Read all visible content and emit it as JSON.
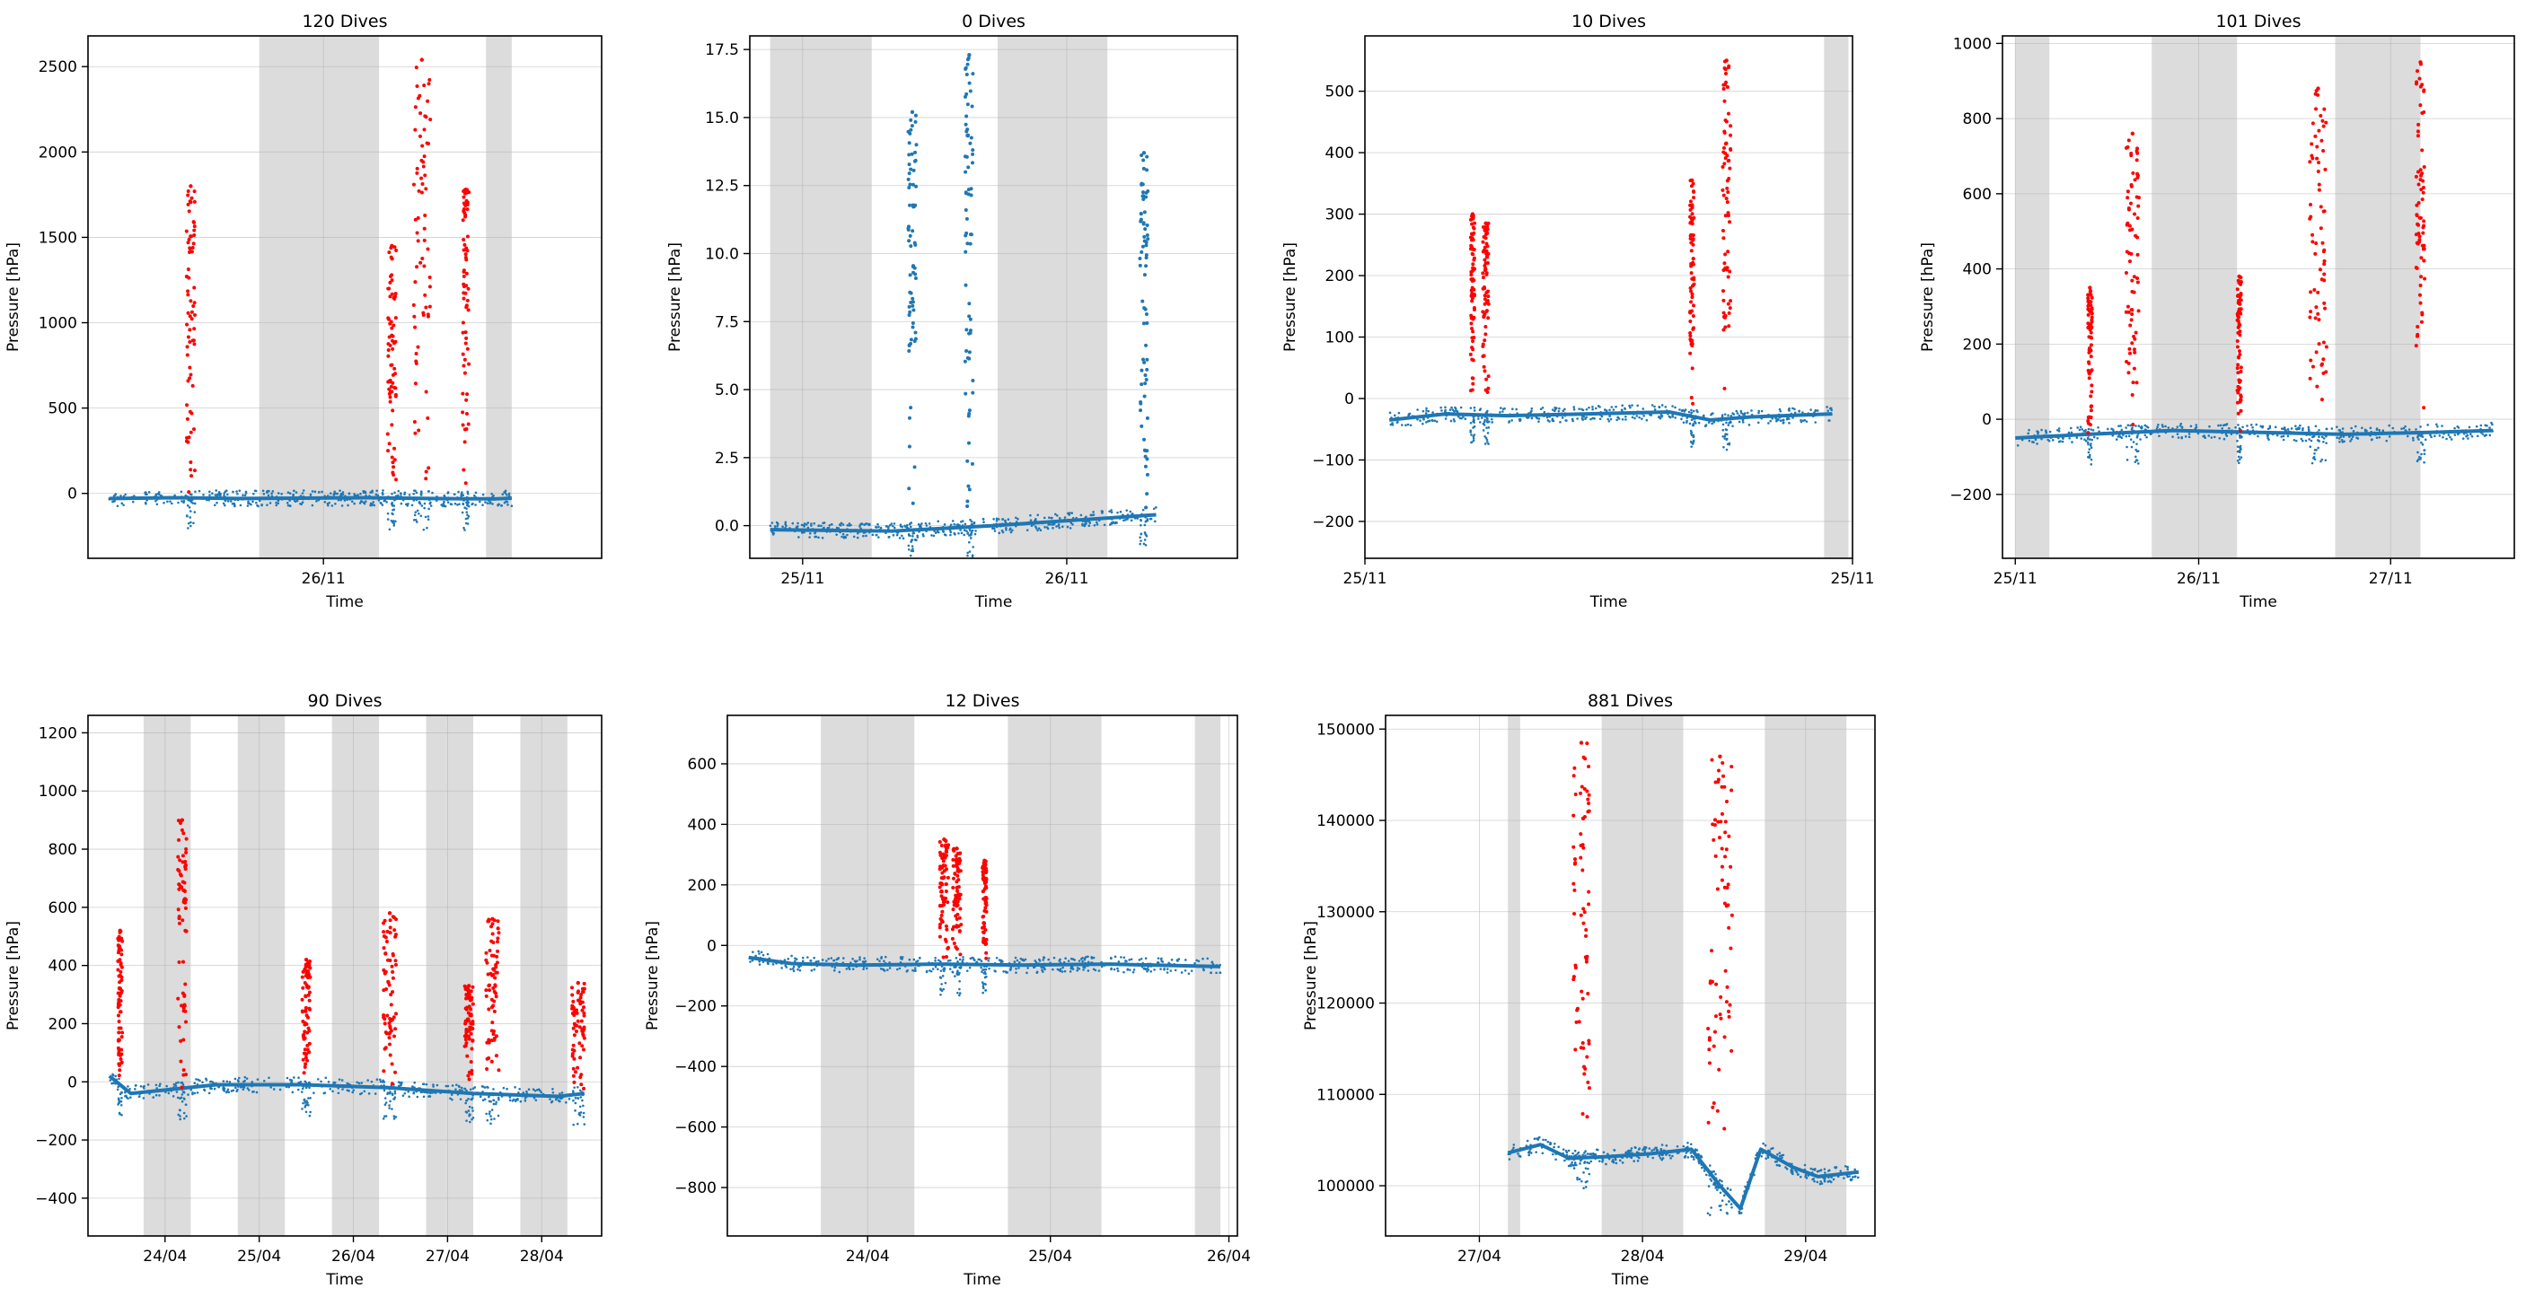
{
  "chart_data": [
    {
      "type": "scatter",
      "title": "120 Dives",
      "xlabel": "Time",
      "ylabel": "Pressure [hPa]",
      "xlim": [
        0,
        1.2
      ],
      "ylim": [
        -380,
        2680
      ],
      "yticks": [
        0,
        500,
        1000,
        1500,
        2000,
        2500
      ],
      "xticks": [
        {
          "x": 0.55,
          "label": "26/11"
        }
      ],
      "grid": true,
      "night_bands": [
        [
          0.4,
          0.68
        ],
        [
          0.93,
          0.99
        ]
      ],
      "baseline": [
        [
          0.05,
          -30
        ],
        [
          0.2,
          -25
        ],
        [
          0.35,
          -30
        ],
        [
          0.5,
          -28
        ],
        [
          0.65,
          -25
        ],
        [
          0.8,
          -30
        ],
        [
          0.95,
          -32
        ],
        [
          0.99,
          -28
        ]
      ],
      "series": [
        {
          "color": "#ff0000",
          "bursts": [
            {
              "x": [
                0.23,
                0.25
              ],
              "peak": 1800
            },
            {
              "x": [
                0.7,
                0.72
              ],
              "peak": 1450
            },
            {
              "x": [
                0.76,
                0.8
              ],
              "peak": 2540
            },
            {
              "x": [
                0.875,
                0.89
              ],
              "peak": 1780
            }
          ]
        }
      ]
    },
    {
      "type": "scatter",
      "title": "0 Dives",
      "xlabel": "Time",
      "ylabel": "Pressure [hPa]",
      "xlim": [
        0,
        1.2
      ],
      "ylim": [
        -1.2,
        18.0
      ],
      "yticks": [
        0.0,
        2.5,
        5.0,
        7.5,
        10.0,
        12.5,
        15.0,
        17.5
      ],
      "ytick_labels": [
        "0.0",
        "2.5",
        "5.0",
        "7.5",
        "10.0",
        "12.5",
        "15.0",
        "17.5"
      ],
      "xticks": [
        {
          "x": 0.13,
          "label": "25/11"
        },
        {
          "x": 0.78,
          "label": "26/11"
        }
      ],
      "grid": true,
      "night_bands": [
        [
          0.05,
          0.3
        ],
        [
          0.61,
          0.88
        ]
      ],
      "baseline": [
        [
          0.05,
          -0.15
        ],
        [
          0.35,
          -0.2
        ],
        [
          0.6,
          0.0
        ],
        [
          0.8,
          0.2
        ],
        [
          1.0,
          0.4
        ]
      ],
      "series": [
        {
          "color": "#1f77b4",
          "bursts": [
            {
              "x": [
                0.39,
                0.41
              ],
              "peak": 15.2
            },
            {
              "x": [
                0.53,
                0.55
              ],
              "peak": 17.3
            },
            {
              "x": [
                0.96,
                0.98
              ],
              "peak": 13.7
            }
          ]
        }
      ]
    },
    {
      "type": "scatter",
      "title": "10 Dives",
      "xlabel": "Time",
      "ylabel": "Pressure [hPa]",
      "xlim": [
        0,
        1.2
      ],
      "ylim": [
        -260,
        590
      ],
      "yticks": [
        -200,
        -100,
        0,
        100,
        200,
        300,
        400,
        500
      ],
      "xticks": [
        {
          "x": 0.0,
          "label": "25/11"
        },
        {
          "x": 1.2,
          "label": "25/11"
        }
      ],
      "grid": true,
      "night_bands": [
        [
          1.13,
          1.19
        ]
      ],
      "baseline": [
        [
          0.06,
          -35
        ],
        [
          0.2,
          -25
        ],
        [
          0.35,
          -28
        ],
        [
          0.55,
          -25
        ],
        [
          0.75,
          -22
        ],
        [
          0.85,
          -35
        ],
        [
          0.95,
          -30
        ],
        [
          1.15,
          -25
        ]
      ],
      "series": [
        {
          "color": "#ff0000",
          "bursts": [
            {
              "x": [
                0.26,
                0.27
              ],
              "peak": 300
            },
            {
              "x": [
                0.29,
                0.305
              ],
              "peak": 285
            },
            {
              "x": [
                0.8,
                0.81
              ],
              "peak": 355
            },
            {
              "x": [
                0.88,
                0.9
              ],
              "peak": 550
            }
          ]
        }
      ]
    },
    {
      "type": "scatter",
      "title": "101 Dives",
      "xlabel": "Time",
      "ylabel": "Pressure [hPa]",
      "xlim": [
        0,
        1.2
      ],
      "ylim": [
        -370,
        1020
      ],
      "yticks": [
        -200,
        0,
        200,
        400,
        600,
        800,
        1000
      ],
      "xticks": [
        {
          "x": 0.03,
          "label": "25/11"
        },
        {
          "x": 0.46,
          "label": "26/11"
        },
        {
          "x": 0.91,
          "label": "27/11"
        }
      ],
      "grid": true,
      "night_bands": [
        [
          0.03,
          0.11
        ],
        [
          0.35,
          0.55
        ],
        [
          0.78,
          0.98
        ]
      ],
      "baseline": [
        [
          0.03,
          -50
        ],
        [
          0.2,
          -40
        ],
        [
          0.4,
          -30
        ],
        [
          0.6,
          -35
        ],
        [
          0.8,
          -40
        ],
        [
          1.0,
          -35
        ],
        [
          1.15,
          -30
        ]
      ],
      "series": [
        {
          "color": "#ff0000",
          "bursts": [
            {
              "x": [
                0.2,
                0.21
              ],
              "peak": 350
            },
            {
              "x": [
                0.29,
                0.32
              ],
              "peak": 760
            },
            {
              "x": [
                0.55,
                0.56
              ],
              "peak": 380
            },
            {
              "x": [
                0.72,
                0.76
              ],
              "peak": 880
            },
            {
              "x": [
                0.97,
                0.99
              ],
              "peak": 950
            }
          ]
        }
      ]
    },
    {
      "type": "scatter",
      "title": "90 Dives",
      "xlabel": "Time",
      "ylabel": "Pressure [hPa]",
      "xlim": [
        0,
        1.2
      ],
      "ylim": [
        -530,
        1260
      ],
      "yticks": [
        -400,
        -200,
        0,
        200,
        400,
        600,
        800,
        1000,
        1200
      ],
      "xticks": [
        {
          "x": 0.18,
          "label": "24/04"
        },
        {
          "x": 0.4,
          "label": "25/04"
        },
        {
          "x": 0.62,
          "label": "26/04"
        },
        {
          "x": 0.84,
          "label": "27/04"
        },
        {
          "x": 1.06,
          "label": "28/04"
        }
      ],
      "grid": true,
      "night_bands": [
        [
          0.13,
          0.24
        ],
        [
          0.35,
          0.46
        ],
        [
          0.57,
          0.68
        ],
        [
          0.79,
          0.9
        ],
        [
          1.01,
          1.12
        ]
      ],
      "baseline": [
        [
          0.05,
          20
        ],
        [
          0.1,
          -40
        ],
        [
          0.3,
          -10
        ],
        [
          0.5,
          -10
        ],
        [
          0.7,
          -20
        ],
        [
          0.9,
          -40
        ],
        [
          1.1,
          -50
        ],
        [
          1.16,
          -40
        ]
      ],
      "series": [
        {
          "color": "#ff0000",
          "bursts": [
            {
              "x": [
                0.07,
                0.08
              ],
              "peak": 520
            },
            {
              "x": [
                0.21,
                0.23
              ],
              "peak": 900
            },
            {
              "x": [
                0.5,
                0.52
              ],
              "peak": 420
            },
            {
              "x": [
                0.69,
                0.72
              ],
              "peak": 580
            },
            {
              "x": [
                0.88,
                0.9
              ],
              "peak": 330
            },
            {
              "x": [
                0.93,
                0.96
              ],
              "peak": 560
            },
            {
              "x": [
                1.13,
                1.16
              ],
              "peak": 340
            }
          ]
        }
      ]
    },
    {
      "type": "scatter",
      "title": "12 Dives",
      "xlabel": "Time",
      "ylabel": "Pressure [hPa]",
      "xlim": [
        0,
        1.2
      ],
      "ylim": [
        -960,
        760
      ],
      "yticks": [
        -800,
        -600,
        -400,
        -200,
        0,
        200,
        400,
        600
      ],
      "xticks": [
        {
          "x": 0.33,
          "label": "24/04"
        },
        {
          "x": 0.76,
          "label": "25/04"
        },
        {
          "x": 1.18,
          "label": "26/04"
        }
      ],
      "grid": true,
      "night_bands": [
        [
          0.22,
          0.44
        ],
        [
          0.66,
          0.88
        ],
        [
          1.1,
          1.16
        ]
      ],
      "baseline": [
        [
          0.05,
          -40
        ],
        [
          0.15,
          -60
        ],
        [
          0.3,
          -65
        ],
        [
          0.5,
          -62
        ],
        [
          0.7,
          -65
        ],
        [
          0.9,
          -62
        ],
        [
          1.16,
          -70
        ]
      ],
      "series": [
        {
          "color": "#ff0000",
          "bursts": [
            {
              "x": [
                0.5,
                0.52
              ],
              "peak": 350
            },
            {
              "x": [
                0.53,
                0.55
              ],
              "peak": 320
            },
            {
              "x": [
                0.6,
                0.61
              ],
              "peak": 280
            }
          ]
        }
      ]
    },
    {
      "type": "scatter",
      "title": "881 Dives",
      "xlabel": "Time",
      "ylabel": "Pressure [hPa]",
      "xlim": [
        0,
        1.2
      ],
      "ylim": [
        94500,
        151500
      ],
      "yticks": [
        100000,
        110000,
        120000,
        130000,
        140000,
        150000
      ],
      "xticks": [
        {
          "x": 0.23,
          "label": "27/04"
        },
        {
          "x": 0.63,
          "label": "28/04"
        },
        {
          "x": 1.03,
          "label": "29/04"
        }
      ],
      "grid": true,
      "night_bands": [
        [
          0.3,
          0.33
        ],
        [
          0.53,
          0.73
        ],
        [
          0.93,
          1.13
        ]
      ],
      "baseline": [
        [
          0.3,
          103600
        ],
        [
          0.38,
          104500
        ],
        [
          0.45,
          103000
        ],
        [
          0.55,
          103200
        ],
        [
          0.65,
          103500
        ],
        [
          0.75,
          104000
        ],
        [
          0.82,
          100000
        ],
        [
          0.87,
          97500
        ],
        [
          0.92,
          104000
        ],
        [
          1.0,
          102000
        ],
        [
          1.06,
          101000
        ],
        [
          1.16,
          101500
        ]
      ],
      "series": [
        {
          "color": "#ff0000",
          "bursts": [
            {
              "x": [
                0.46,
                0.5
              ],
              "peak": 148500
            },
            {
              "x": [
                0.79,
                0.85
              ],
              "peak": 147000
            }
          ]
        }
      ]
    }
  ]
}
